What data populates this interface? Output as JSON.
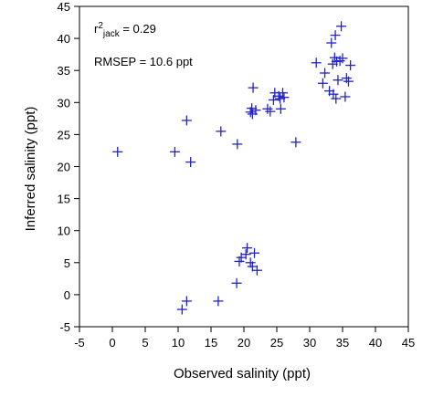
{
  "chart_data": {
    "type": "scatter",
    "title": "",
    "xlabel": "Observed salinity (ppt)",
    "ylabel": "Inferred salinity (ppt)",
    "xlim": [
      -5,
      45
    ],
    "ylim": [
      -5,
      45
    ],
    "xticks": [
      -5,
      0,
      5,
      10,
      15,
      20,
      25,
      30,
      35,
      40,
      45
    ],
    "yticks": [
      -5,
      0,
      5,
      10,
      15,
      20,
      25,
      30,
      35,
      40,
      45
    ],
    "grid": false,
    "legend": "none",
    "marker": "plus",
    "marker_color": "#2222cc",
    "annotations": {
      "r2_prefix": "r",
      "r2_sup": "2",
      "r2_sub": "jack",
      "r2_value": " = 0.29",
      "rmsep": "RMSEP = 10.6 ppt"
    },
    "series": [
      {
        "points": [
          [
            0.8,
            22.3
          ],
          [
            9.5,
            22.3
          ],
          [
            11.3,
            27.2
          ],
          [
            11.9,
            20.7
          ],
          [
            16.5,
            25.5
          ],
          [
            19.0,
            23.5
          ],
          [
            21.0,
            28.5
          ],
          [
            21.2,
            29.1
          ],
          [
            21.4,
            32.3
          ],
          [
            21.3,
            28.2
          ],
          [
            21.8,
            28.8
          ],
          [
            23.6,
            29.0
          ],
          [
            24.0,
            28.6
          ],
          [
            24.5,
            30.4
          ],
          [
            24.7,
            31.5
          ],
          [
            25.3,
            31.0
          ],
          [
            25.5,
            30.6
          ],
          [
            25.6,
            29.0
          ],
          [
            25.9,
            31.5
          ],
          [
            26.1,
            30.8
          ],
          [
            27.9,
            23.8
          ],
          [
            31.0,
            36.2
          ],
          [
            32.0,
            33.0
          ],
          [
            32.3,
            34.6
          ],
          [
            33.0,
            31.8
          ],
          [
            33.3,
            39.3
          ],
          [
            33.5,
            36.0
          ],
          [
            33.6,
            31.3
          ],
          [
            33.8,
            37.0
          ],
          [
            33.9,
            40.5
          ],
          [
            34.0,
            30.6
          ],
          [
            34.1,
            36.4
          ],
          [
            34.3,
            33.5
          ],
          [
            34.6,
            36.5
          ],
          [
            34.8,
            41.9
          ],
          [
            35.0,
            36.9
          ],
          [
            35.4,
            30.9
          ],
          [
            35.6,
            33.8
          ],
          [
            35.9,
            33.3
          ],
          [
            36.2,
            35.8
          ],
          [
            18.9,
            1.8
          ],
          [
            19.3,
            5.2
          ],
          [
            19.6,
            5.8
          ],
          [
            20.3,
            6.3
          ],
          [
            20.5,
            7.3
          ],
          [
            21.0,
            5.0
          ],
          [
            21.3,
            4.4
          ],
          [
            21.6,
            6.5
          ],
          [
            22.0,
            3.8
          ],
          [
            10.6,
            -2.3
          ],
          [
            11.3,
            -1.0
          ],
          [
            16.1,
            -1.0
          ]
        ]
      }
    ]
  }
}
